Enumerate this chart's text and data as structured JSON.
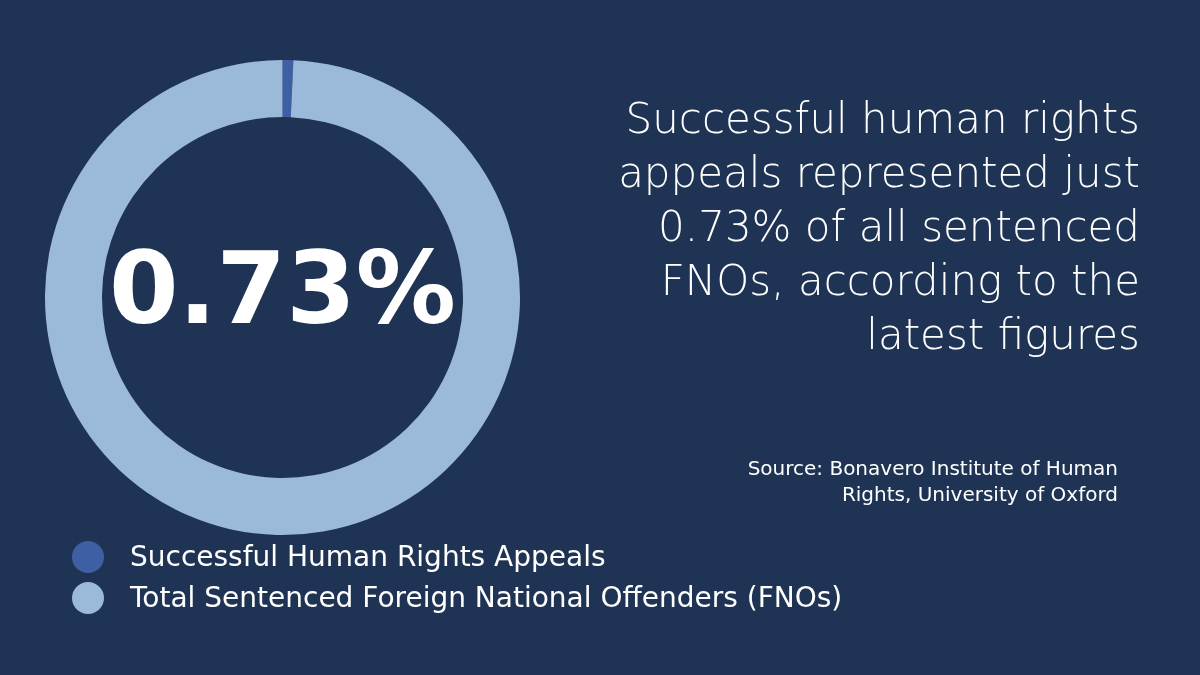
{
  "chart_data": {
    "type": "donut",
    "title": "Successful human rights appeals represented just 0.73% of all sentenced FNOs, according to the latest figures",
    "categories": [
      "Successful Human Rights Appeals",
      "Total Sentenced Foreign National Offenders (FNOs)"
    ],
    "values": [
      0.73,
      99.27
    ],
    "colors": [
      "#3e5fa3",
      "#9bb9d9"
    ],
    "legend": "bottom",
    "annotations": [
      "0.73%",
      "Source: Bonavero Institute of Human Rights, University of Oxford"
    ]
  }
}
